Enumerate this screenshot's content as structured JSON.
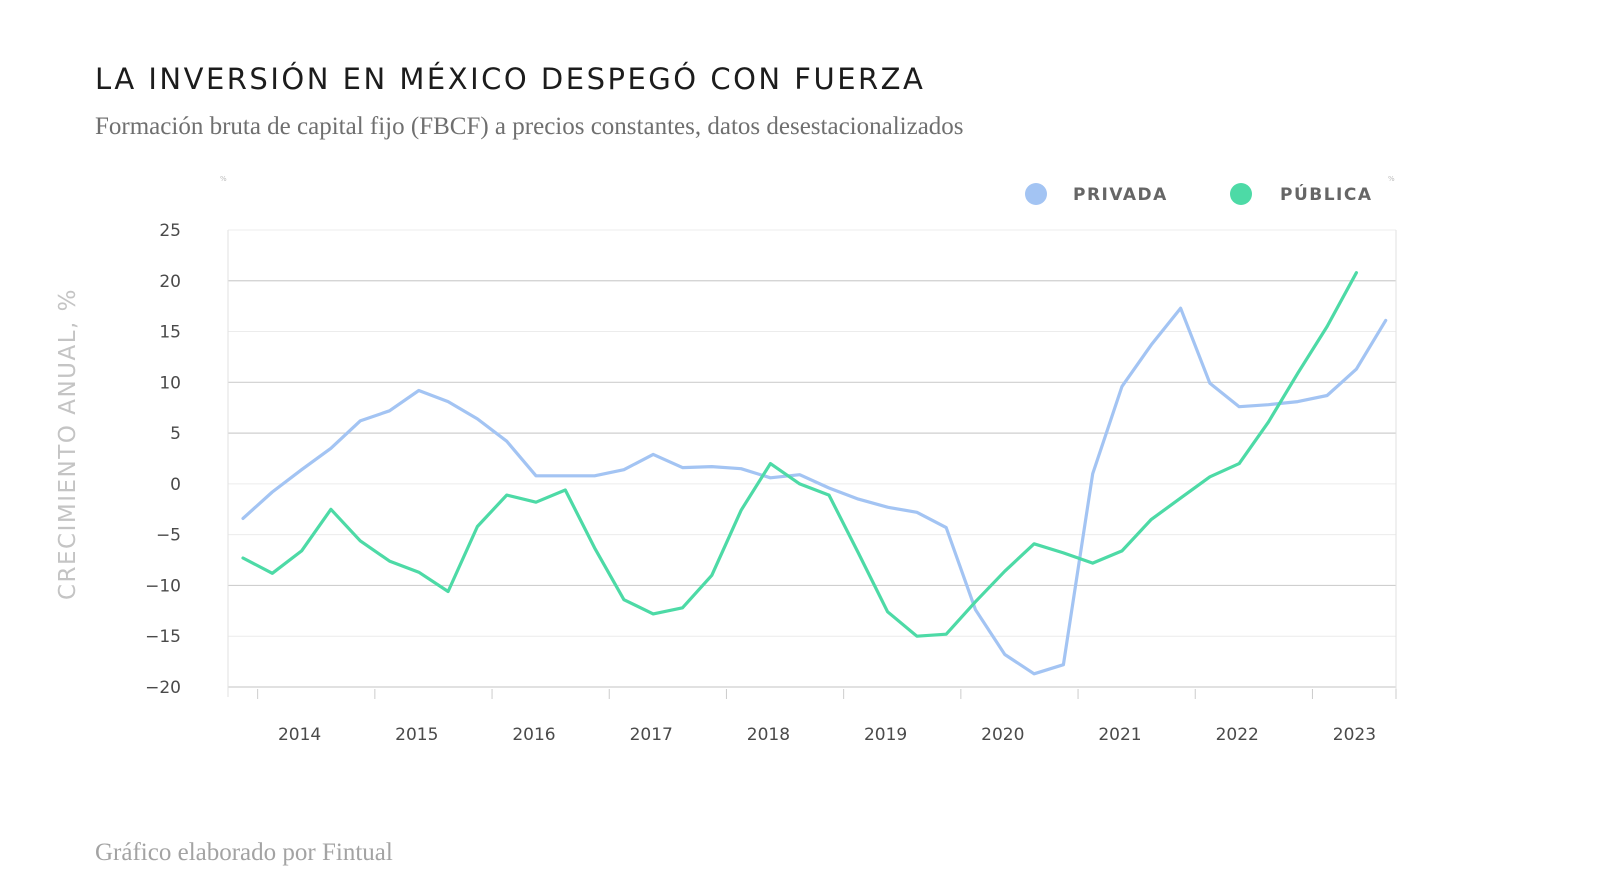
{
  "title": "LA INVERSIÓN EN MÉXICO DESPEGÓ CON FUERZA",
  "subtitle": "Formación bruta de capital fijo (FBCF) a precios constantes, datos desestacionalizados",
  "footer": "Gráfico elaborado por Fintual",
  "chart_data": {
    "type": "line",
    "title": "LA INVERSIÓN EN MÉXICO DESPEGÓ CON FUERZA",
    "ylabel": "CRECIMIENTO ANUAL, %",
    "xlabel": "",
    "ylim": [
      -20,
      25
    ],
    "yticks": [
      25,
      20,
      15,
      10,
      5,
      0,
      -5,
      -10,
      -15,
      -20
    ],
    "ytick_labels": [
      "25",
      "20",
      "15",
      "10",
      "5",
      "0",
      "−5",
      "−10",
      "−15",
      "−20"
    ],
    "x_tick_labels": [
      "2014",
      "2015",
      "2016",
      "2017",
      "2018",
      "2019",
      "2020",
      "2021",
      "2022",
      "2023"
    ],
    "corner_marks": [
      "%",
      "%"
    ],
    "legend_position": "top-right",
    "grid": true,
    "x": [
      "2013-Q4",
      "2014-Q1",
      "2014-Q2",
      "2014-Q3",
      "2014-Q4",
      "2015-Q1",
      "2015-Q2",
      "2015-Q3",
      "2015-Q4",
      "2016-Q1",
      "2016-Q2",
      "2016-Q3",
      "2016-Q4",
      "2017-Q1",
      "2017-Q2",
      "2017-Q3",
      "2017-Q4",
      "2018-Q1",
      "2018-Q2",
      "2018-Q3",
      "2018-Q4",
      "2019-Q1",
      "2019-Q2",
      "2019-Q3",
      "2019-Q4",
      "2020-Q1",
      "2020-Q2",
      "2020-Q3",
      "2020-Q4",
      "2021-Q1",
      "2021-Q2",
      "2021-Q3",
      "2021-Q4",
      "2022-Q1",
      "2022-Q2",
      "2022-Q3",
      "2022-Q4",
      "2023-Q1",
      "2023-Q2",
      "2023-Q3",
      "2023-Q4"
    ],
    "series": [
      {
        "name": "PRIVADA",
        "color": "#a3c4f3",
        "values": [
          -3.4,
          -0.8,
          1.4,
          3.5,
          6.2,
          7.2,
          9.2,
          8.1,
          6.4,
          4.2,
          0.8,
          0.8,
          0.8,
          1.4,
          2.9,
          1.6,
          1.7,
          1.5,
          0.6,
          0.9,
          -0.4,
          -1.5,
          -2.3,
          -2.8,
          -4.3,
          -12.4,
          -16.8,
          -18.7,
          -17.8,
          1.0,
          9.6,
          13.7,
          17.3,
          9.9,
          7.6,
          7.8,
          8.1,
          8.7,
          11.3,
          16.1,
          null
        ]
      },
      {
        "name": "PÚBLICA",
        "color": "#4ddaa6",
        "values": [
          -7.3,
          -8.8,
          -6.6,
          -2.5,
          -5.6,
          -7.6,
          -8.7,
          -10.6,
          -4.2,
          -1.1,
          -1.8,
          -0.6,
          -6.3,
          -11.4,
          -12.8,
          -12.2,
          -9.0,
          -2.6,
          2.0,
          0.0,
          -1.1,
          -6.8,
          -12.6,
          -15.0,
          -14.8,
          -11.6,
          -8.6,
          -5.9,
          -6.8,
          -7.8,
          -6.6,
          -3.5,
          -1.4,
          0.7,
          2.0,
          6.1,
          10.9,
          15.5,
          20.8,
          null,
          null
        ]
      }
    ]
  }
}
